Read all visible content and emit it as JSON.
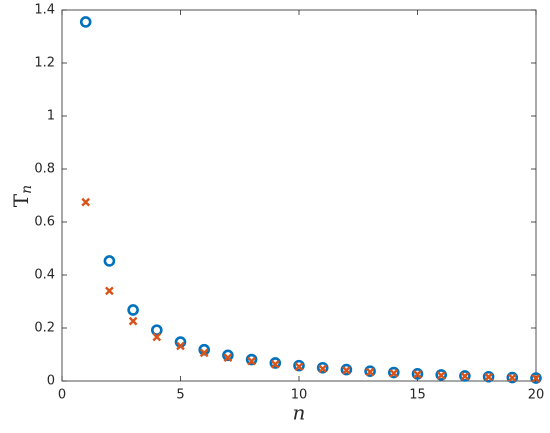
{
  "chart_data": {
    "type": "scatter",
    "x_label": "n",
    "y_label": [
      "T",
      "n"
    ],
    "x": [
      1,
      2,
      3,
      4,
      5,
      6,
      7,
      8,
      9,
      10,
      11,
      12,
      13,
      14,
      15,
      16,
      17,
      18,
      19,
      20
    ],
    "series": [
      {
        "color": "#0072bd",
        "marker": "circle",
        "values": [
          1.355,
          0.453,
          0.268,
          0.192,
          0.147,
          0.118,
          0.097,
          0.081,
          0.068,
          0.058,
          0.05,
          0.043,
          0.037,
          0.032,
          0.027,
          0.023,
          0.019,
          0.016,
          0.013,
          0.011
        ]
      },
      {
        "color": "#d95319",
        "marker": "x",
        "values": [
          0.675,
          0.34,
          0.226,
          0.166,
          0.132,
          0.106,
          0.088,
          0.075,
          0.063,
          0.054,
          0.046,
          0.04,
          0.034,
          0.029,
          0.025,
          0.021,
          0.018,
          0.015,
          0.012,
          0.01
        ]
      }
    ],
    "xlim": [
      0,
      20
    ],
    "ylim": [
      0,
      1.4
    ],
    "xticks": [
      0,
      5,
      10,
      15,
      20
    ],
    "yticks": [
      0,
      0.2,
      0.4,
      0.6,
      0.8,
      1,
      1.2,
      1.4
    ],
    "grid": false
  }
}
